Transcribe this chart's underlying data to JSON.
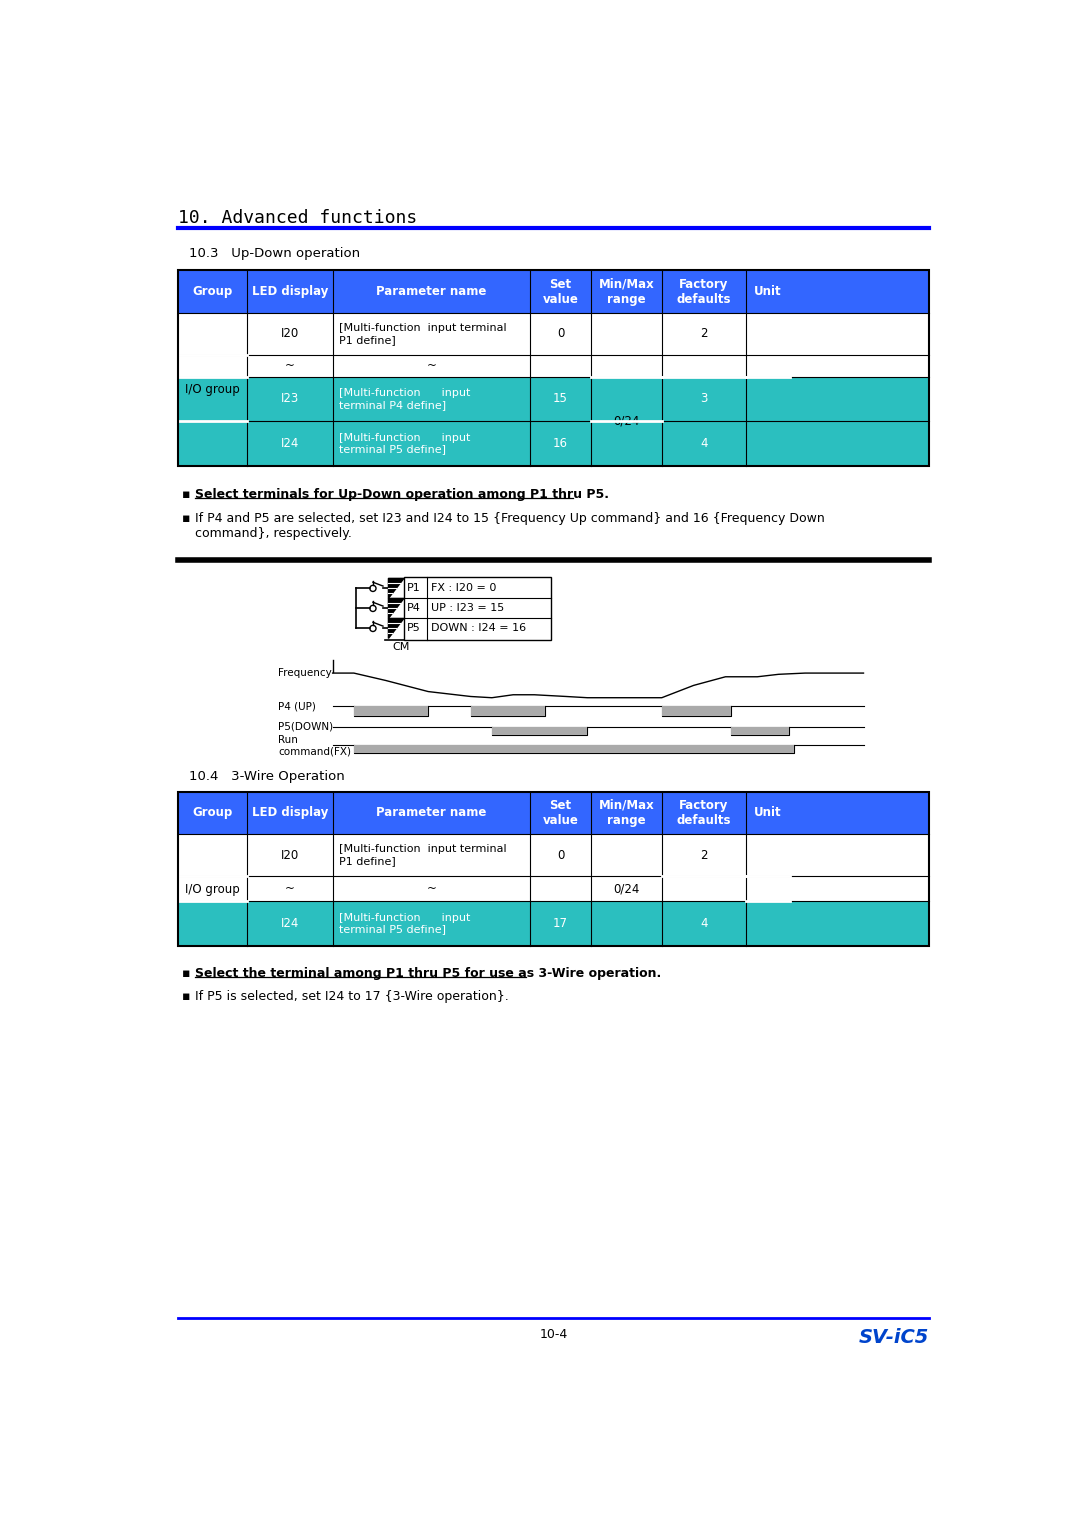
{
  "title": "10. Advanced functions",
  "title_color": "#000000",
  "blue_line_color": "#0000FF",
  "section1_title": "10.3   Up-Down operation",
  "section2_title": "10.4   3-Wire Operation",
  "header_bg": "#3366FF",
  "teal_bg": "#2BBFBF",
  "table1_headers": [
    "Group",
    "LED display",
    "Parameter name",
    "Set\nvalue",
    "Min/Max\nrange",
    "Factory\ndefaults",
    "Unit"
  ],
  "table2_headers": [
    "Group",
    "LED display",
    "Parameter name",
    "Set\nvalue",
    "Min/Max\nrange",
    "Factory\ndefaults",
    "Unit"
  ],
  "bullet1_bold": "Select terminals for Up-Down operation among P1 thru P5.",
  "bullet2": "If P4 and P5 are selected, set I23 and I24 to 15 {Frequency Up command} and 16 {Frequency Down\ncommand}, respectively.",
  "bullet3_bold": "Select the terminal among P1 thru P5 for use as 3-Wire operation.",
  "bullet4": "If P5 is selected, set I24 to 17 {3-Wire operation}.",
  "footer_page": "10-4",
  "footer_model": "SV-iC5",
  "footer_model_color": "#0044CC",
  "bg_color": "#FFFFFF"
}
